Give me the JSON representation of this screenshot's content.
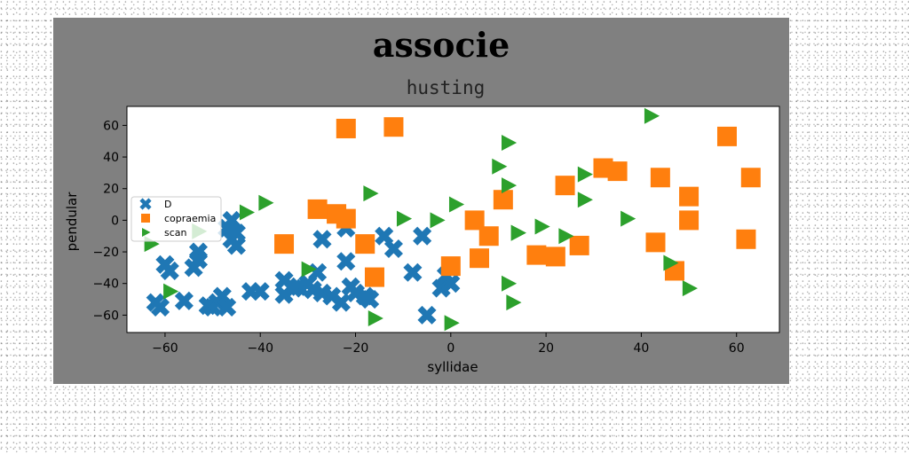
{
  "chart_data": {
    "type": "scatter",
    "title": "associe",
    "subtitle": "husting",
    "xlabel": "syllidae",
    "ylabel": "pendular",
    "xlim": [
      -68,
      69
    ],
    "ylim": [
      -71,
      72
    ],
    "xticks": [
      -60,
      -40,
      -20,
      0,
      20,
      40,
      60
    ],
    "yticks": [
      -60,
      -40,
      -20,
      0,
      20,
      40,
      60
    ],
    "xtick_labels": [
      "−60",
      "−40",
      "−20",
      "0",
      "20",
      "40",
      "60"
    ],
    "ytick_labels": [
      "−60",
      "−40",
      "−20",
      "0",
      "20",
      "40",
      "60"
    ],
    "grid": false,
    "legend_position": "center-left",
    "series": [
      {
        "name": "D",
        "marker": "x",
        "color": "#1f77b4",
        "x": [
          -61,
          -62,
          -60,
          -59,
          -56,
          -53,
          -53,
          -54,
          -51,
          -50,
          -49,
          -48,
          -47,
          -46,
          -45,
          -46,
          -47,
          -45,
          -42,
          -40,
          -35,
          -35,
          -33,
          -32,
          -30,
          -29,
          -28,
          -27,
          -25,
          -23,
          -22,
          -21,
          -20,
          -18,
          -17,
          -14,
          -12,
          -8,
          -5,
          -6,
          -2,
          0,
          -1,
          -27,
          -22
        ],
        "y": [
          -55,
          -52,
          -28,
          -32,
          -51,
          -20,
          -25,
          -30,
          -54,
          -55,
          -52,
          -48,
          -55,
          -12,
          -16,
          0,
          -5,
          -8,
          -45,
          -45,
          -38,
          -47,
          -43,
          -42,
          -40,
          -44,
          -33,
          -46,
          -48,
          -52,
          -5,
          -42,
          -46,
          -48,
          -50,
          -10,
          -18,
          -33,
          -60,
          -10,
          -43,
          -40,
          -35,
          -12,
          -26
        ]
      },
      {
        "name": "copraemia",
        "marker": "s",
        "color": "#ff7f0e",
        "x": [
          -35,
          -28,
          -24,
          -22,
          -22,
          -18,
          -16,
          -12,
          0,
          5,
          6,
          8,
          11,
          18,
          22,
          24,
          27,
          32,
          35,
          43,
          44,
          47,
          50,
          50,
          58,
          62,
          63
        ],
        "y": [
          -15,
          7,
          4,
          1,
          58,
          -15,
          -36,
          59,
          -29,
          0,
          -24,
          -10,
          13,
          -22,
          -23,
          22,
          -16,
          33,
          31,
          -14,
          27,
          -32,
          15,
          0,
          53,
          -12,
          27
        ]
      },
      {
        "name": "scan",
        "marker": ">",
        "color": "#2ca02c",
        "x": [
          -63,
          -59,
          -53,
          -43,
          -39,
          -30,
          -17,
          -16,
          -10,
          -3,
          0,
          1,
          10,
          12,
          12,
          12,
          13,
          14,
          14,
          19,
          24,
          28,
          28,
          37,
          42,
          46,
          50
        ],
        "y": [
          -15,
          -45,
          -7,
          5,
          11,
          -31,
          17,
          -62,
          1,
          0,
          -65,
          10,
          34,
          49,
          22,
          -40,
          -52,
          -8,
          -8,
          -4,
          -10,
          29,
          13,
          1,
          66,
          -27,
          -43
        ]
      }
    ]
  }
}
